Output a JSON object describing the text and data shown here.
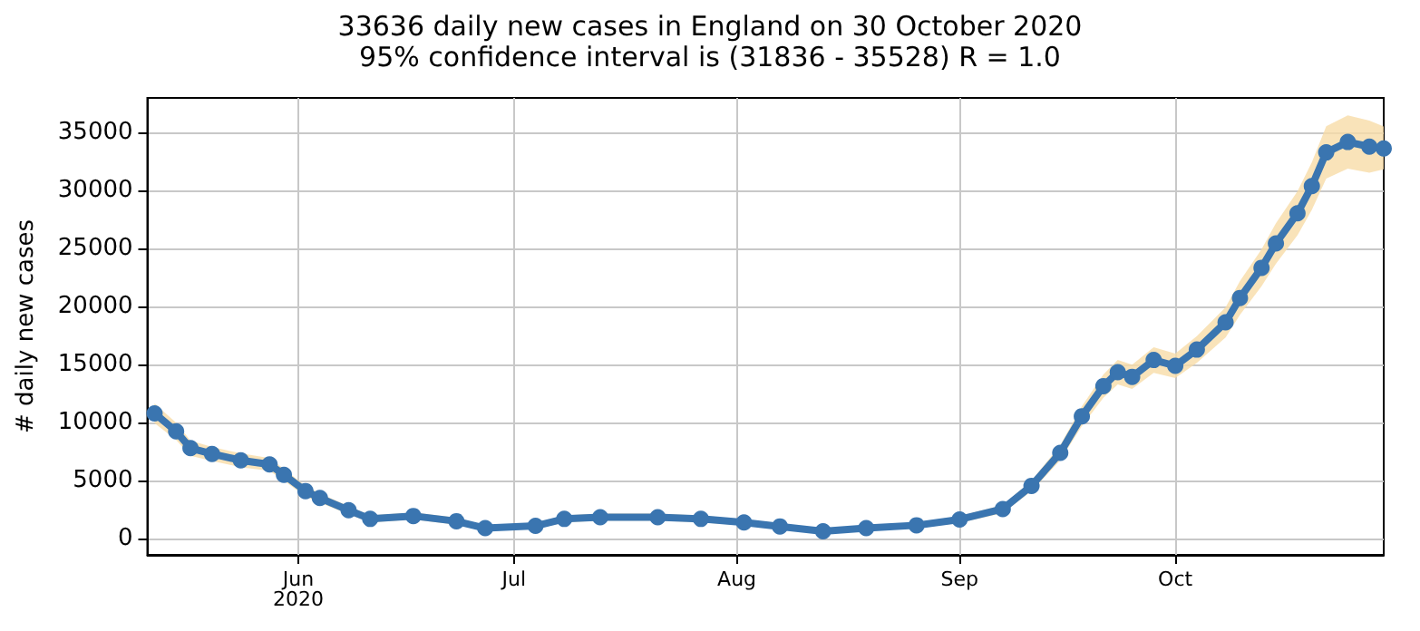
{
  "chart_data": {
    "type": "line",
    "title": "33636 daily new cases in England on 30 October 2020",
    "subtitle": "95% confidence interval is (31836 - 35528) R = 1.0",
    "ylabel": "# daily new cases",
    "x": [
      "2020-05-12",
      "2020-05-15",
      "2020-05-17",
      "2020-05-20",
      "2020-05-24",
      "2020-05-28",
      "2020-05-30",
      "2020-06-02",
      "2020-06-04",
      "2020-06-08",
      "2020-06-11",
      "2020-06-17",
      "2020-06-23",
      "2020-06-27",
      "2020-07-04",
      "2020-07-08",
      "2020-07-13",
      "2020-07-21",
      "2020-07-27",
      "2020-08-02",
      "2020-08-07",
      "2020-08-13",
      "2020-08-19",
      "2020-08-26",
      "2020-09-01",
      "2020-09-07",
      "2020-09-11",
      "2020-09-15",
      "2020-09-18",
      "2020-09-21",
      "2020-09-23",
      "2020-09-25",
      "2020-09-28",
      "2020-10-01",
      "2020-10-04",
      "2020-10-08",
      "2020-10-10",
      "2020-10-13",
      "2020-10-15",
      "2020-10-18",
      "2020-10-20",
      "2020-10-22",
      "2020-10-25",
      "2020-10-28",
      "2020-10-30"
    ],
    "series": [
      {
        "color": "#3a75b0",
        "values": [
          10800,
          9250,
          7800,
          7300,
          6750,
          6400,
          5500,
          4100,
          3500,
          2450,
          1700,
          1950,
          1500,
          900,
          1100,
          1700,
          1850,
          1850,
          1700,
          1400,
          1050,
          630,
          900,
          1150,
          1650,
          2550,
          4550,
          7400,
          10550,
          13150,
          14350,
          13950,
          15400,
          14900,
          16300,
          18650,
          20750,
          23350,
          25450,
          28050,
          30400,
          33300,
          34200,
          33800,
          33636
        ],
        "lower": [
          9950,
          8500,
          7150,
          6700,
          6150,
          5850,
          5000,
          3650,
          3100,
          2100,
          1400,
          1650,
          1200,
          650,
          850,
          1400,
          1550,
          1550,
          1400,
          1150,
          800,
          400,
          650,
          900,
          1350,
          2200,
          4100,
          6750,
          9700,
          12150,
          13300,
          12900,
          14300,
          13850,
          15150,
          17350,
          19300,
          21750,
          23700,
          26150,
          28350,
          31050,
          31900,
          31550,
          31836
        ],
        "upper": [
          11650,
          10000,
          8450,
          7900,
          7350,
          6950,
          6000,
          4550,
          3900,
          2800,
          2000,
          2250,
          1800,
          1150,
          1350,
          2000,
          2150,
          2150,
          2000,
          1650,
          1300,
          860,
          1150,
          1400,
          1950,
          2900,
          5000,
          8050,
          11400,
          14150,
          15400,
          15000,
          16500,
          15950,
          17450,
          19950,
          22200,
          24950,
          27200,
          29950,
          32450,
          35550,
          36500,
          36050,
          35528
        ]
      }
    ],
    "xlim": [
      "2020-05-11",
      "2020-10-30"
    ],
    "xticks": [
      {
        "value": "2020-06-01",
        "label": "Jun\n2020"
      },
      {
        "value": "2020-07-01",
        "label": "Jul"
      },
      {
        "value": "2020-08-01",
        "label": "Aug"
      },
      {
        "value": "2020-09-01",
        "label": "Sep"
      },
      {
        "value": "2020-10-01",
        "label": "Oct"
      }
    ],
    "ylim": [
      -1400,
      38000
    ],
    "yticks": [
      0,
      5000,
      10000,
      15000,
      20000,
      25000,
      30000,
      35000
    ],
    "grid": true,
    "marker": "circle",
    "line_style": "solid"
  }
}
